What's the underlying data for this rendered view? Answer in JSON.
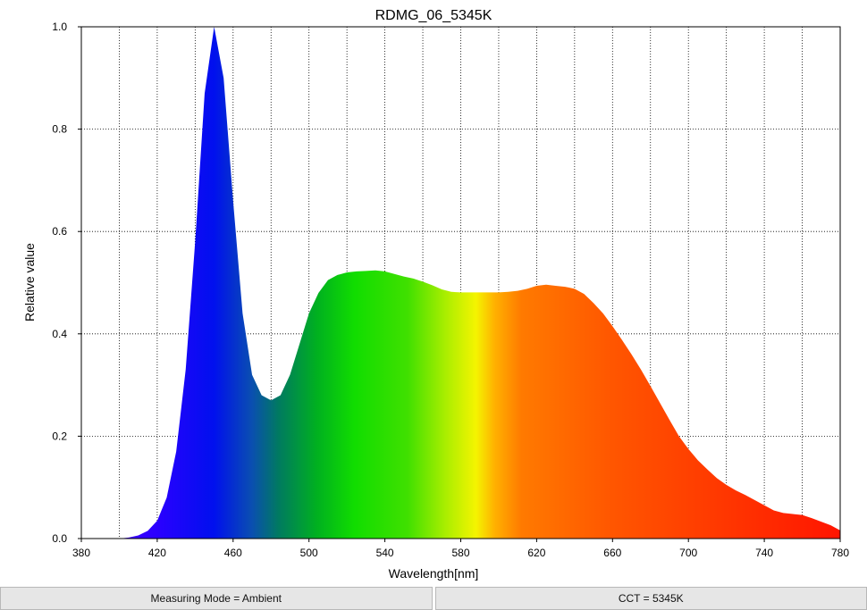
{
  "chart_data": {
    "type": "area",
    "title": "RDMG_06_5345K",
    "xlabel": "Wavelength[nm]",
    "ylabel": "Relative value",
    "xlim": [
      380,
      780
    ],
    "ylim": [
      0,
      1.0
    ],
    "x_ticks": [
      380,
      420,
      460,
      500,
      540,
      580,
      620,
      660,
      700,
      740,
      780
    ],
    "y_ticks": [
      0.0,
      0.2,
      0.4,
      0.6,
      0.8,
      1.0
    ],
    "x_tick_labels": [
      "380",
      "420",
      "460",
      "500",
      "540",
      "580",
      "620",
      "660",
      "700",
      "740",
      "780"
    ],
    "y_tick_labels": [
      "0.0",
      "0.2",
      "0.4",
      "0.6",
      "0.8",
      "1.0"
    ],
    "grid": true,
    "x": [
      400,
      405,
      410,
      415,
      420,
      425,
      430,
      435,
      440,
      445,
      450,
      455,
      460,
      465,
      470,
      475,
      480,
      485,
      490,
      495,
      500,
      505,
      510,
      515,
      520,
      525,
      530,
      535,
      540,
      545,
      550,
      555,
      560,
      565,
      570,
      575,
      580,
      585,
      590,
      595,
      600,
      605,
      610,
      615,
      620,
      625,
      630,
      635,
      640,
      645,
      650,
      655,
      660,
      665,
      670,
      675,
      680,
      685,
      690,
      695,
      700,
      705,
      710,
      715,
      720,
      725,
      730,
      735,
      740,
      745,
      750,
      755,
      760,
      765,
      770,
      775,
      780
    ],
    "values": [
      0.0,
      0.002,
      0.006,
      0.015,
      0.035,
      0.08,
      0.17,
      0.33,
      0.58,
      0.87,
      1.0,
      0.9,
      0.66,
      0.44,
      0.32,
      0.28,
      0.27,
      0.28,
      0.32,
      0.38,
      0.44,
      0.48,
      0.505,
      0.515,
      0.52,
      0.522,
      0.523,
      0.524,
      0.522,
      0.517,
      0.512,
      0.508,
      0.502,
      0.495,
      0.487,
      0.482,
      0.481,
      0.481,
      0.481,
      0.481,
      0.481,
      0.482,
      0.484,
      0.488,
      0.494,
      0.496,
      0.494,
      0.492,
      0.488,
      0.478,
      0.46,
      0.44,
      0.415,
      0.388,
      0.36,
      0.33,
      0.298,
      0.265,
      0.232,
      0.2,
      0.175,
      0.153,
      0.135,
      0.118,
      0.105,
      0.094,
      0.085,
      0.075,
      0.065,
      0.055,
      0.05,
      0.048,
      0.046,
      0.04,
      0.033,
      0.026,
      0.016
    ]
  },
  "status": {
    "measuring_mode": "Measuring Mode = Ambient",
    "cct": "CCT = 5345K"
  }
}
